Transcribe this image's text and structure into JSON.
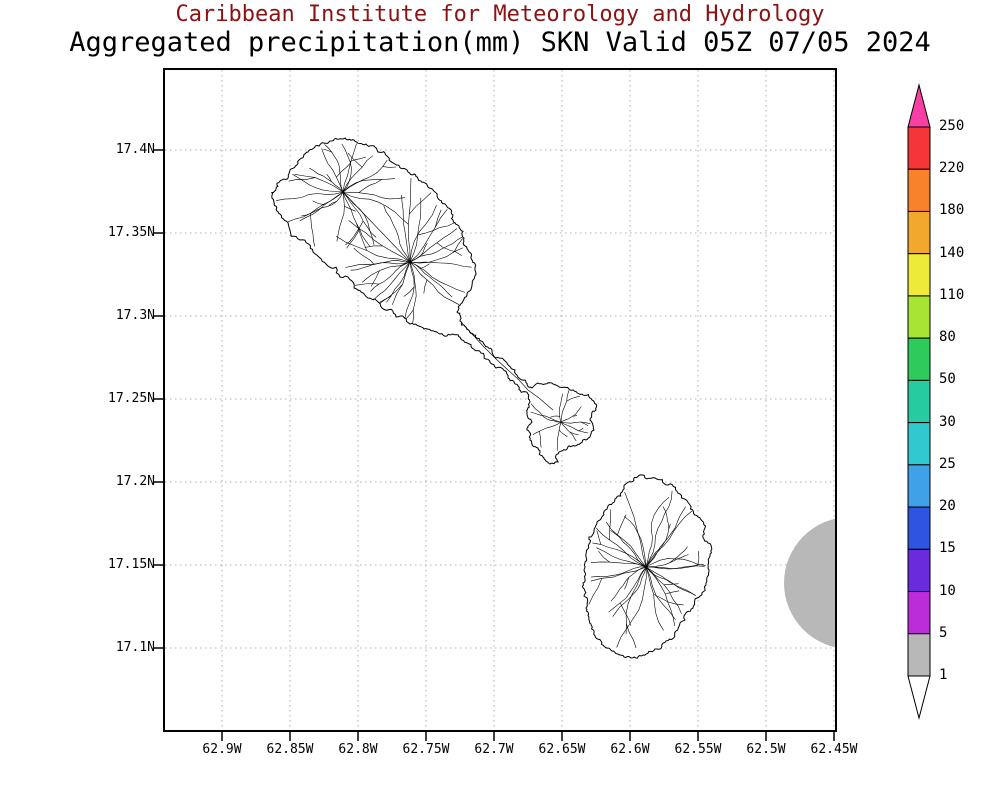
{
  "title": {
    "line1": "Caribbean Institute for Meteorology and Hydrology",
    "line2": "Aggregated precipitation(mm) SKN Valid 05Z 07/05 2024"
  },
  "axes": {
    "latitude_ticks": [
      "17.4N",
      "17.35N",
      "17.3N",
      "17.25N",
      "17.2N",
      "17.15N",
      "17.1N"
    ],
    "longitude_ticks": [
      "62.9W",
      "62.85W",
      "62.8W",
      "62.75W",
      "62.7W",
      "62.65W",
      "62.6W",
      "62.55W",
      "62.5W",
      "62.45W"
    ]
  },
  "colorbar": {
    "units": "mm",
    "levels_top_to_bottom": [
      "250",
      "220",
      "180",
      "140",
      "110",
      "80",
      "50",
      "30",
      "25",
      "20",
      "15",
      "10",
      "5",
      "1"
    ],
    "arrow_top_color": "#f93fa4",
    "arrow_bottom_color": "#ffffff",
    "segment_colors_top_to_bottom": [
      "#f43638",
      "#f8812b",
      "#f2a82c",
      "#eeea39",
      "#a8e433",
      "#2ecb5c",
      "#27cba0",
      "#2fc9cf",
      "#3fa2e8",
      "#2f55e0",
      "#6a2bdc",
      "#bb2dd8",
      "#b8b8b8"
    ]
  },
  "colors": {
    "title_line1": "#8b1212",
    "title_line2": "#000000",
    "gridline": "#b0b0b0",
    "coastline": "#000000",
    "land_fill": "#ffffff",
    "sea_patch": "#b8b8b8"
  }
}
